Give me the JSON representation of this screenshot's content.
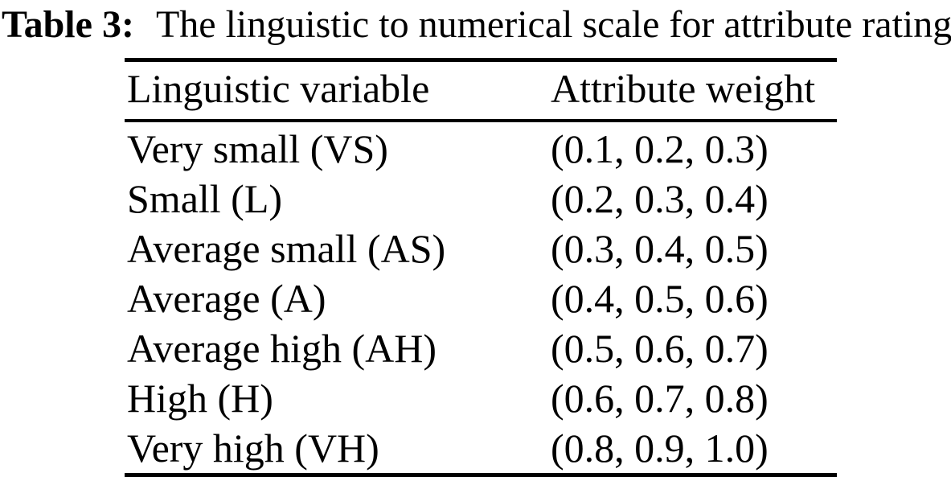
{
  "caption": {
    "label": "Table 3:",
    "text": "The linguistic to numerical scale for attribute rating"
  },
  "table": {
    "headers": [
      "Linguistic variable",
      "Attribute weight"
    ],
    "rows": [
      {
        "variable": "Very small (VS)",
        "weight": "(0.1, 0.2, 0.3)"
      },
      {
        "variable": "Small (L)",
        "weight": "(0.2, 0.3, 0.4)"
      },
      {
        "variable": "Average small (AS)",
        "weight": "(0.3, 0.4, 0.5)"
      },
      {
        "variable": "Average (A)",
        "weight": "(0.4, 0.5, 0.6)"
      },
      {
        "variable": "Average high (AH)",
        "weight": "(0.5, 0.6, 0.7)"
      },
      {
        "variable": "High (H)",
        "weight": "(0.6, 0.7, 0.8)"
      },
      {
        "variable": "Very high (VH)",
        "weight": "(0.8, 0.9, 1.0)"
      }
    ]
  },
  "colors": {
    "background": "#ffffff",
    "text": "#000000",
    "rule": "#000000"
  }
}
